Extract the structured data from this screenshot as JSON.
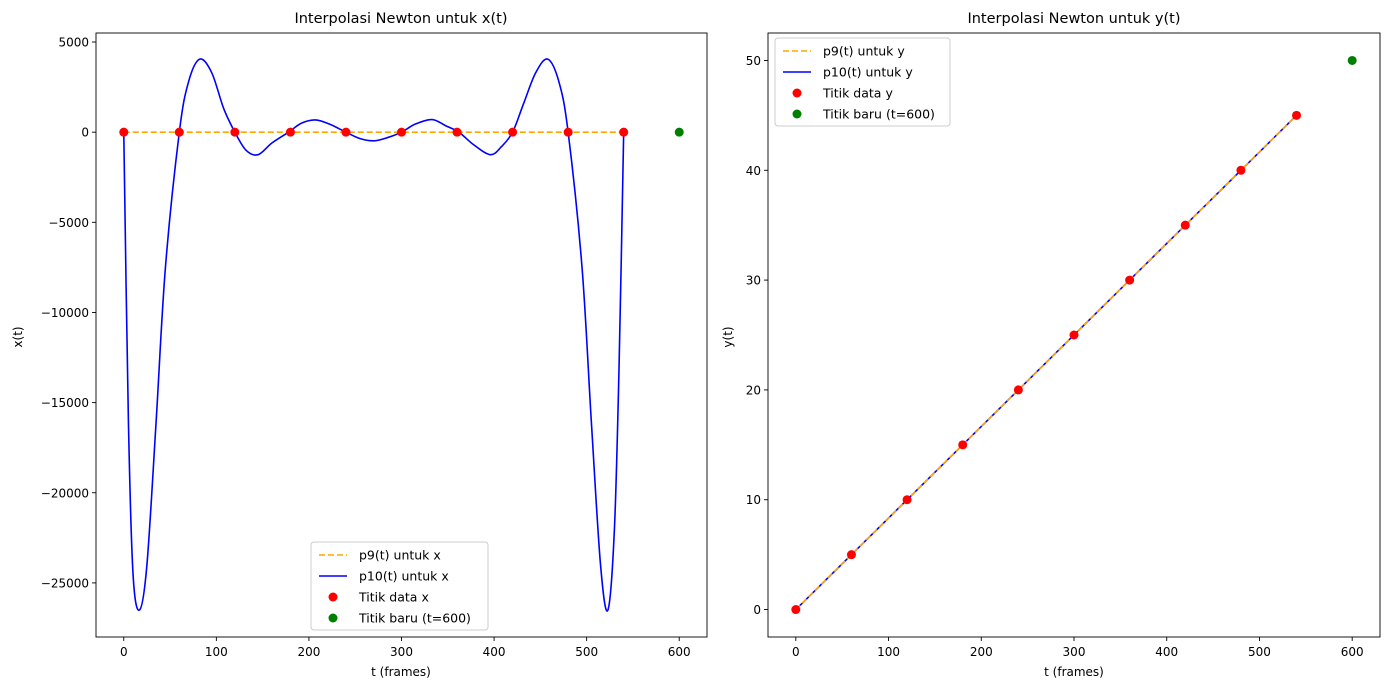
{
  "chart_data": [
    {
      "type": "line",
      "title": "Interpolasi Newton untuk x(t)",
      "xlabel": "t (frames)",
      "ylabel": "x(t)",
      "xlim": [
        -30,
        630
      ],
      "ylim": [
        -28000,
        5500
      ],
      "xticks": [
        0,
        100,
        200,
        300,
        400,
        500,
        600
      ],
      "xtick_labels": [
        "0",
        "100",
        "200",
        "300",
        "400",
        "500",
        "600"
      ],
      "yticks": [
        5000,
        0,
        -5000,
        -10000,
        -15000,
        -20000,
        -25000
      ],
      "ytick_labels": [
        "5000",
        "0",
        "−5000",
        "−10000",
        "−15000",
        "−20000",
        "−25000"
      ],
      "legend_position": "lower center",
      "series": [
        {
          "name": "p9(t) untuk x",
          "kind": "line",
          "style": "dashed",
          "color": "#ffa500",
          "x": [
            0,
            540
          ],
          "y": [
            0,
            0
          ]
        },
        {
          "name": "p10(t) untuk x",
          "kind": "line",
          "style": "solid",
          "color": "#0000ff",
          "x": [
            0,
            5,
            10,
            17,
            25,
            35,
            45,
            60,
            70,
            82,
            95,
            108,
            120,
            132,
            145,
            160,
            178,
            192,
            207,
            222,
            240,
            255,
            270,
            285,
            300,
            315,
            333,
            348,
            362,
            378,
            396,
            408,
            420,
            432,
            445,
            458,
            470,
            480,
            495,
            505,
            515,
            523,
            530,
            535,
            540
          ],
          "y": [
            0,
            -16000,
            -24500,
            -26500,
            -24000,
            -16000,
            -7500,
            0,
            2800,
            4050,
            3300,
            1300,
            0,
            -1000,
            -1250,
            -600,
            0,
            500,
            680,
            450,
            0,
            -350,
            -480,
            -300,
            0,
            450,
            700,
            350,
            0,
            -700,
            -1250,
            -800,
            0,
            1600,
            3300,
            4050,
            2800,
            0,
            -7500,
            -16000,
            -24000,
            -26500,
            -22000,
            -13000,
            0
          ]
        },
        {
          "name": "Titik data x",
          "kind": "scatter",
          "color": "#ff0000",
          "x": [
            0,
            60,
            120,
            180,
            240,
            300,
            360,
            420,
            480,
            540
          ],
          "y": [
            0,
            0,
            0,
            0,
            0,
            0,
            0,
            0,
            0,
            0
          ]
        },
        {
          "name": "Titik baru (t=600)",
          "kind": "scatter",
          "color": "#008000",
          "x": [
            600
          ],
          "y": [
            0
          ]
        }
      ]
    },
    {
      "type": "line",
      "title": "Interpolasi Newton untuk y(t)",
      "xlabel": "t (frames)",
      "ylabel": "y(t)",
      "xlim": [
        -30,
        630
      ],
      "ylim": [
        -2.5,
        52.5
      ],
      "xticks": [
        0,
        100,
        200,
        300,
        400,
        500,
        600
      ],
      "xtick_labels": [
        "0",
        "100",
        "200",
        "300",
        "400",
        "500",
        "600"
      ],
      "yticks": [
        0,
        10,
        20,
        30,
        40,
        50
      ],
      "ytick_labels": [
        "0",
        "10",
        "20",
        "30",
        "40",
        "50"
      ],
      "legend_position": "upper left",
      "series": [
        {
          "name": "p9(t) untuk y",
          "kind": "line",
          "style": "dashed",
          "color": "#ffa500",
          "x": [
            0,
            540
          ],
          "y": [
            0,
            45
          ]
        },
        {
          "name": "p10(t) untuk y",
          "kind": "line",
          "style": "solid",
          "color": "#0000ff",
          "x": [
            0,
            540
          ],
          "y": [
            0,
            45
          ]
        },
        {
          "name": "Titik data y",
          "kind": "scatter",
          "color": "#ff0000",
          "x": [
            0,
            60,
            120,
            180,
            240,
            300,
            360,
            420,
            480,
            540
          ],
          "y": [
            0,
            5,
            10,
            15,
            20,
            25,
            30,
            35,
            40,
            45
          ]
        },
        {
          "name": "Titik baru (t=600)",
          "kind": "scatter",
          "color": "#008000",
          "x": [
            600
          ],
          "y": [
            50
          ]
        }
      ]
    }
  ]
}
